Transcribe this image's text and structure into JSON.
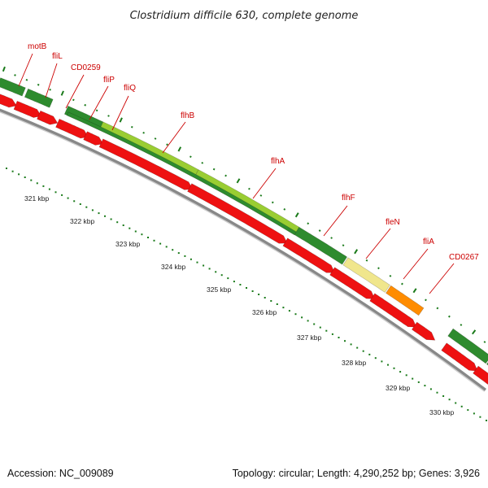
{
  "title": "Clostridium difficile 630, complete genome",
  "footer": {
    "accession": "Accession: NC_009089",
    "summary": "Topology: circular; Length: 4,290,252 bp; Genes: 3,926"
  },
  "colors": {
    "background": "#ffffff",
    "label": "#cc0000",
    "forward_dark_green": "#2e8b2e",
    "forward_light_green": "#9acd32",
    "forward_pale_yellow": "#f0e68c",
    "forward_orange": "#ff8c00",
    "reverse_red": "#ee1111",
    "backbone": "#888888",
    "tick": "#1a7a1a"
  },
  "gene_labels": [
    "motB",
    "fliL",
    "CD0259",
    "fliP",
    "fliQ",
    "flhB",
    "flhA",
    "flhF",
    "fleN",
    "fliA",
    "CD0267"
  ],
  "scale_labels": [
    "321 kbp",
    "322 kbp",
    "323 kbp",
    "324 kbp",
    "325 kbp",
    "326 kbp",
    "327 kbp",
    "328 kbp",
    "329 kbp",
    "330 kbp"
  ]
}
